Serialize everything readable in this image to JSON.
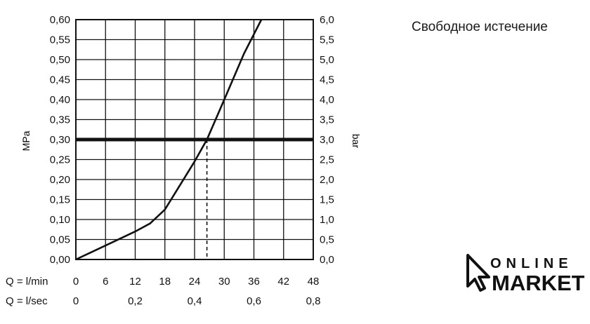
{
  "side_title": "Свободное истечение",
  "logo": {
    "line1": "ONLINE",
    "line2": "MARKET"
  },
  "chart_data": {
    "type": "line",
    "title": "",
    "xlabel": "",
    "ylabel": "MPa",
    "ylabel_right": "bar",
    "ylim": [
      0,
      0.6
    ],
    "xlim": [
      0,
      48
    ],
    "grid": true,
    "left_ticks": [
      "0,00",
      "0,05",
      "0,10",
      "0,15",
      "0,20",
      "0,25",
      "0,30",
      "0,35",
      "0,40",
      "0,45",
      "0,50",
      "0,55",
      "0,60"
    ],
    "right_ticks": [
      "0,0",
      "0,5",
      "1,0",
      "1,5",
      "2,0",
      "2,5",
      "3,0",
      "3,5",
      "4,0",
      "4,5",
      "5,0",
      "5,5",
      "6,0"
    ],
    "x_axis_rows": [
      {
        "label": "Q = l/min",
        "ticks": [
          {
            "x": 0,
            "text": "0"
          },
          {
            "x": 6,
            "text": "6"
          },
          {
            "x": 12,
            "text": "12"
          },
          {
            "x": 18,
            "text": "18"
          },
          {
            "x": 24,
            "text": "24"
          },
          {
            "x": 30,
            "text": "30"
          },
          {
            "x": 36,
            "text": "36"
          },
          {
            "x": 42,
            "text": "42"
          },
          {
            "x": 48,
            "text": "48"
          }
        ]
      },
      {
        "label": "Q = l/sec",
        "ticks": [
          {
            "x": 0,
            "text": "0"
          },
          {
            "x": 12,
            "text": "0,2"
          },
          {
            "x": 24,
            "text": "0,4"
          },
          {
            "x": 36,
            "text": "0,6"
          },
          {
            "x": 48,
            "text": "0,8"
          }
        ]
      }
    ],
    "series": [
      {
        "x": [
          0,
          6,
          12,
          15,
          18,
          21,
          24,
          26.5,
          30,
          34,
          37.5
        ],
        "y": [
          0,
          0.035,
          0.07,
          0.09,
          0.125,
          0.185,
          0.245,
          0.3,
          0.4,
          0.515,
          0.6
        ]
      }
    ],
    "reference_line": {
      "y": 0.3
    },
    "marker": {
      "x": 26.5,
      "y": 0.3
    }
  }
}
